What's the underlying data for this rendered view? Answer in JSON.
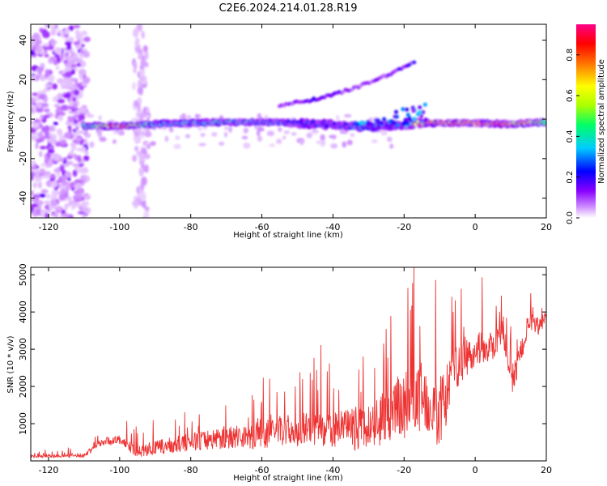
{
  "title": "C2E6.2024.214.01.28.R19",
  "chart_data": [
    {
      "type": "heatmap",
      "name": "spectrogram",
      "xlabel": "Height of straight line (km)",
      "ylabel": "Frequency (Hz)",
      "xlim": [
        -125,
        20
      ],
      "ylim": [
        -50,
        48
      ],
      "xticks": [
        -120,
        -100,
        -80,
        -60,
        -40,
        -20,
        0,
        20
      ],
      "yticks": [
        -40,
        -20,
        0,
        20,
        40
      ],
      "colorbar": {
        "label": "Normalized spectral amplitude",
        "range": [
          0,
          0.95
        ],
        "ticks": [
          0.0,
          0.2,
          0.4,
          0.6,
          0.8
        ],
        "tick_labels": [
          "0.0",
          "0.2",
          "0.4",
          "0.6",
          "0.8"
        ],
        "colors": [
          "#ffffff",
          "#cc88ff",
          "#8800ff",
          "#0000ff",
          "#00ccff",
          "#00ff66",
          "#aaff00",
          "#ffff00",
          "#ff8800",
          "#ff0000",
          "#ff0088"
        ]
      },
      "main_band": {
        "x": [
          -110,
          -100,
          -90,
          -80,
          -70,
          -60,
          -50,
          -40,
          -30,
          -20,
          -15,
          -10,
          0,
          10,
          19
        ],
        "freq": [
          -3.5,
          -3.5,
          -2.5,
          -2,
          -1.5,
          -1.5,
          -2,
          -3,
          -4,
          -3,
          -2,
          -2,
          -2,
          -2.5,
          -1.5
        ],
        "amplitude": [
          0.45,
          0.9,
          0.4,
          0.45,
          0.45,
          0.4,
          0.35,
          0.3,
          0.35,
          0.3,
          0.9,
          0.9,
          0.95,
          0.9,
          0.6
        ]
      },
      "upper_trace": {
        "x": [
          -55,
          -45,
          -35,
          -25,
          -17
        ],
        "freq": [
          7,
          10,
          15,
          22,
          29
        ],
        "amplitude": [
          0.15,
          0.25,
          0.2,
          0.2,
          0.25
        ]
      }
    },
    {
      "type": "line",
      "name": "snr",
      "xlabel": "Height of straight line (km)",
      "ylabel": "SNR (10 * v/v)",
      "xlim": [
        -125,
        20
      ],
      "ylim": [
        0,
        5200
      ],
      "xticks": [
        -120,
        -100,
        -80,
        -60,
        -40,
        -20,
        0,
        20
      ],
      "yticks": [
        1000,
        2000,
        3000,
        4000,
        5000
      ],
      "color": "#ee3333",
      "trend": {
        "x": [
          -125,
          -110,
          -105,
          -100,
          -95,
          -90,
          -80,
          -70,
          -60,
          -50,
          -40,
          -30,
          -20,
          -15,
          -10,
          -5,
          0,
          5,
          8,
          10,
          12,
          15,
          18,
          20
        ],
        "y": [
          120,
          150,
          520,
          560,
          250,
          350,
          500,
          650,
          700,
          850,
          800,
          900,
          1500,
          1800,
          1300,
          2600,
          3000,
          3100,
          3500,
          2100,
          2600,
          3700,
          3600,
          3900
        ]
      },
      "noise_amplitude": {
        "x": [
          -125,
          -110,
          -100,
          -80,
          -60,
          -40,
          -25,
          -20,
          -10,
          0,
          10,
          20
        ],
        "y": [
          60,
          120,
          250,
          450,
          700,
          900,
          1300,
          1800,
          1700,
          800,
          700,
          350
        ]
      }
    }
  ]
}
